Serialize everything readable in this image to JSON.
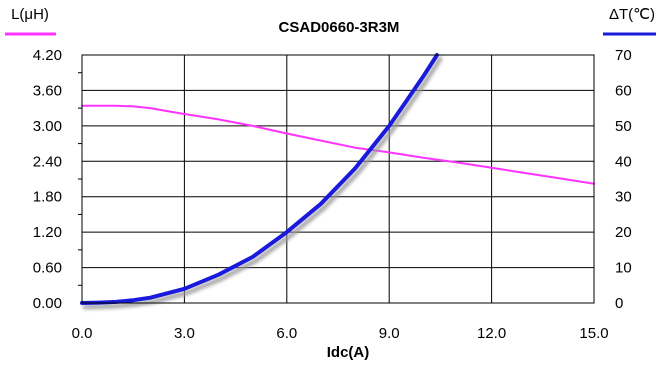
{
  "chart_data": {
    "type": "line",
    "title": "CSAD0660-3R3M",
    "xlabel": "Idc(A)",
    "ylabel_left": "L(μH)",
    "ylabel_right": "ΔT(℃)",
    "xlim": [
      0,
      15
    ],
    "ylim_left": [
      0,
      4.2
    ],
    "ylim_right": [
      0,
      70
    ],
    "x_ticks": [
      "0.0",
      "3.0",
      "6.0",
      "9.0",
      "12.0",
      "15.0"
    ],
    "y_left_ticks": [
      "0.00",
      "0.60",
      "1.20",
      "1.80",
      "2.40",
      "3.00",
      "3.60",
      "4.20"
    ],
    "y_right_ticks": [
      "0",
      "10",
      "20",
      "30",
      "40",
      "50",
      "60",
      "70"
    ],
    "grid": true,
    "series": [
      {
        "axis": "left",
        "color": "#ff33ff",
        "x": [
          0,
          0.5,
          1,
          1.5,
          2,
          2.5,
          3,
          4,
          5,
          6,
          7,
          8,
          9,
          10,
          11,
          12,
          13,
          14,
          15
        ],
        "values": [
          3.34,
          3.34,
          3.34,
          3.33,
          3.3,
          3.25,
          3.2,
          3.11,
          3.0,
          2.87,
          2.75,
          2.63,
          2.55,
          2.46,
          2.38,
          2.29,
          2.2,
          2.11,
          2.02
        ]
      },
      {
        "axis": "right",
        "color": "#1a1adc",
        "x": [
          0,
          0.5,
          1,
          1.5,
          2,
          3,
          4,
          5,
          6,
          7,
          8,
          9,
          9.5,
          10,
          10.4
        ],
        "values": [
          0,
          0.1,
          0.3,
          0.8,
          1.5,
          4,
          8,
          13,
          20,
          28,
          38,
          50,
          57,
          64,
          70
        ]
      }
    ]
  }
}
